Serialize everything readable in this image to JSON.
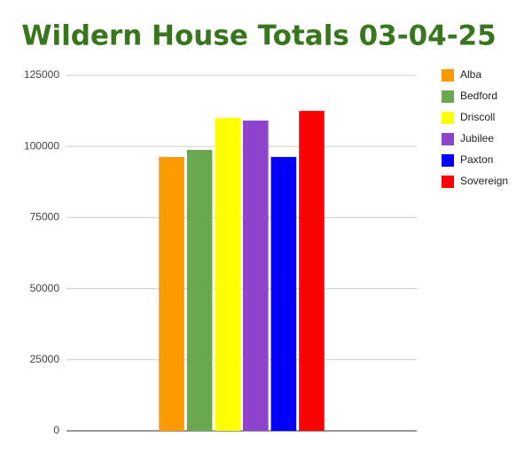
{
  "chart_data": {
    "type": "bar",
    "title": "Wildern House Totals 03-04-25",
    "categories": [
      null
    ],
    "series": [
      {
        "name": "Alba",
        "color": "#ff9900",
        "values": [
          96300
        ]
      },
      {
        "name": "Bedford",
        "color": "#6aa84f",
        "values": [
          98800
        ]
      },
      {
        "name": "Driscoll",
        "color": "#ffff00",
        "values": [
          110000
        ]
      },
      {
        "name": "Jubilee",
        "color": "#8e44cc",
        "values": [
          109100
        ]
      },
      {
        "name": "Paxton",
        "color": "#0000ff",
        "values": [
          96300
        ]
      },
      {
        "name": "Sovereign",
        "color": "#ff0000",
        "values": [
          112500
        ]
      }
    ],
    "ylim": [
      0,
      125000
    ],
    "yticks": [
      0,
      25000,
      50000,
      75000,
      100000,
      125000
    ],
    "grid": true,
    "legend": "right"
  }
}
